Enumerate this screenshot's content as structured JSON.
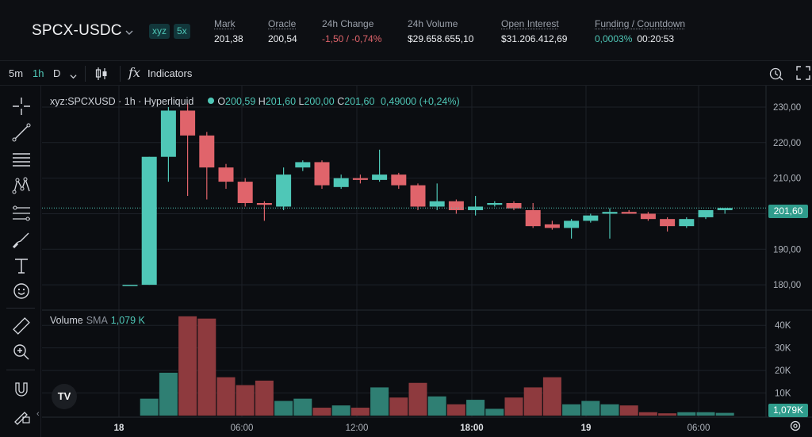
{
  "header": {
    "pair": "SPCX-USDC",
    "tags": [
      "xyz",
      "5x"
    ],
    "stats": [
      {
        "label": "Mark",
        "value": "201,38",
        "tone": "normal",
        "underline": true
      },
      {
        "label": "Oracle",
        "value": "200,54",
        "tone": "normal",
        "underline": true
      },
      {
        "label": "24h Change",
        "value": "-1,50 / -0,74%",
        "tone": "neg",
        "underline": false
      },
      {
        "label": "24h Volume",
        "value": "$29.658.655,10",
        "tone": "normal",
        "underline": false
      },
      {
        "label": "Open Interest",
        "value": "$31.206.412,69",
        "tone": "normal",
        "underline": true
      },
      {
        "label": "Funding / Countdown",
        "value": "0,0003%",
        "countdown": "00:20:53",
        "tone": "pos",
        "underline": true
      }
    ]
  },
  "toolbar": {
    "timeframes": [
      "5m",
      "1h",
      "D"
    ],
    "active_timeframe": "1h",
    "indicators_label": "Indicators",
    "fx_symbol": "fx"
  },
  "left_tools": [
    "crosshair-icon",
    "trend-line-icon",
    "horizontal-lines-icon",
    "pattern-icon",
    "fib-icon",
    "brush-icon",
    "text-icon",
    "emoji-icon",
    "ruler-icon",
    "zoom-in-icon",
    "magnet-icon",
    "lock-draw-icon"
  ],
  "legend": {
    "symbol": "xyz:SPCXUSD · 1h · Hyperliquid",
    "open_label": "O",
    "open": "200,59",
    "high_label": "H",
    "high": "201,60",
    "low_label": "L",
    "low": "200,00",
    "close_label": "C",
    "close": "201,60",
    "change": "0,49000 (+0,24%)"
  },
  "volume_legend": {
    "label": "Volume",
    "sma_label": "SMA",
    "value": "1,079 K"
  },
  "price_badge": "201,60",
  "volume_badge": "1,079K",
  "logo_text": "TV",
  "colors": {
    "up": "#4fc7b7",
    "down": "#e0646b",
    "up_volume": "#2f7f73",
    "down_volume": "#8e3a3e",
    "background": "#0b0d11",
    "grid": "#1d2128"
  },
  "chart_data": {
    "type": "candlestick",
    "price_axis": {
      "ticks": [
        "230,00",
        "220,00",
        "210,00",
        "200,00",
        "190,00",
        "180,00"
      ],
      "range": [
        174,
        232
      ]
    },
    "volume_axis": {
      "ticks": [
        "40K",
        "30K",
        "20K",
        "10K"
      ],
      "range": [
        0,
        45
      ]
    },
    "x_ticks": [
      "18",
      "06:00",
      "12:00",
      "18:00",
      "19",
      "06:00"
    ],
    "x_ticks_bold": [
      true,
      false,
      false,
      true,
      true,
      false
    ],
    "candles": [
      {
        "o": 180.0,
        "h": 180.0,
        "l": 180.0,
        "c": 180.0,
        "v": 0
      },
      {
        "o": 180.0,
        "h": 216.0,
        "l": 180.0,
        "c": 216.0,
        "v": 7.5
      },
      {
        "o": 216.0,
        "h": 230.0,
        "l": 209.0,
        "c": 229.0,
        "v": 19
      },
      {
        "o": 229.0,
        "h": 231.0,
        "l": 205.0,
        "c": 222.0,
        "v": 44
      },
      {
        "o": 222.0,
        "h": 223.0,
        "l": 204.0,
        "c": 213.0,
        "v": 43
      },
      {
        "o": 213.0,
        "h": 214.0,
        "l": 207.0,
        "c": 209.0,
        "v": 17
      },
      {
        "o": 209.0,
        "h": 210.0,
        "l": 202.0,
        "c": 203.0,
        "v": 13.5
      },
      {
        "o": 203.0,
        "h": 203.5,
        "l": 198.0,
        "c": 202.5,
        "v": 15.5
      },
      {
        "o": 202.0,
        "h": 213.0,
        "l": 201.0,
        "c": 211.0,
        "v": 6.5
      },
      {
        "o": 213.0,
        "h": 215.0,
        "l": 212.0,
        "c": 214.5,
        "v": 7.5
      },
      {
        "o": 214.5,
        "h": 215.0,
        "l": 207.0,
        "c": 208.0,
        "v": 3.5
      },
      {
        "o": 207.5,
        "h": 211.0,
        "l": 207.0,
        "c": 210.0,
        "v": 4.5
      },
      {
        "o": 210.0,
        "h": 211.0,
        "l": 208.5,
        "c": 209.5,
        "v": 3.5
      },
      {
        "o": 209.5,
        "h": 218.0,
        "l": 209.0,
        "c": 211.0,
        "v": 12.5
      },
      {
        "o": 211.0,
        "h": 211.5,
        "l": 207.0,
        "c": 208.0,
        "v": 8
      },
      {
        "o": 208.0,
        "h": 208.5,
        "l": 201.0,
        "c": 202.0,
        "v": 14.5
      },
      {
        "o": 202.0,
        "h": 208.5,
        "l": 201.0,
        "c": 203.5,
        "v": 8.5
      },
      {
        "o": 203.5,
        "h": 204.0,
        "l": 200.0,
        "c": 201.0,
        "v": 5
      },
      {
        "o": 201.0,
        "h": 205.0,
        "l": 199.5,
        "c": 202.0,
        "v": 7
      },
      {
        "o": 202.5,
        "h": 203.5,
        "l": 202.0,
        "c": 203.0,
        "v": 3
      },
      {
        "o": 203.0,
        "h": 203.5,
        "l": 201.0,
        "c": 201.5,
        "v": 8
      },
      {
        "o": 201.0,
        "h": 203.0,
        "l": 196.0,
        "c": 196.5,
        "v": 12.5
      },
      {
        "o": 197.0,
        "h": 198.0,
        "l": 195.5,
        "c": 196.0,
        "v": 17
      },
      {
        "o": 196.0,
        "h": 198.5,
        "l": 193.0,
        "c": 198.0,
        "v": 5
      },
      {
        "o": 198.0,
        "h": 200.0,
        "l": 197.5,
        "c": 199.5,
        "v": 6.5
      },
      {
        "o": 200.0,
        "h": 201.5,
        "l": 193.0,
        "c": 200.5,
        "v": 5
      },
      {
        "o": 200.5,
        "h": 201.0,
        "l": 200.0,
        "c": 200.0,
        "v": 4.5
      },
      {
        "o": 200.0,
        "h": 200.5,
        "l": 198.0,
        "c": 198.5,
        "v": 1.5
      },
      {
        "o": 198.5,
        "h": 199.0,
        "l": 195.0,
        "c": 196.5,
        "v": 1.0
      },
      {
        "o": 196.5,
        "h": 199.0,
        "l": 196.0,
        "c": 198.5,
        "v": 1.5
      },
      {
        "o": 199.0,
        "h": 201.0,
        "l": 198.5,
        "c": 201.0,
        "v": 1.5
      },
      {
        "o": 201.0,
        "h": 201.6,
        "l": 200.0,
        "c": 201.6,
        "v": 1.2
      }
    ],
    "last_price": 201.6
  }
}
